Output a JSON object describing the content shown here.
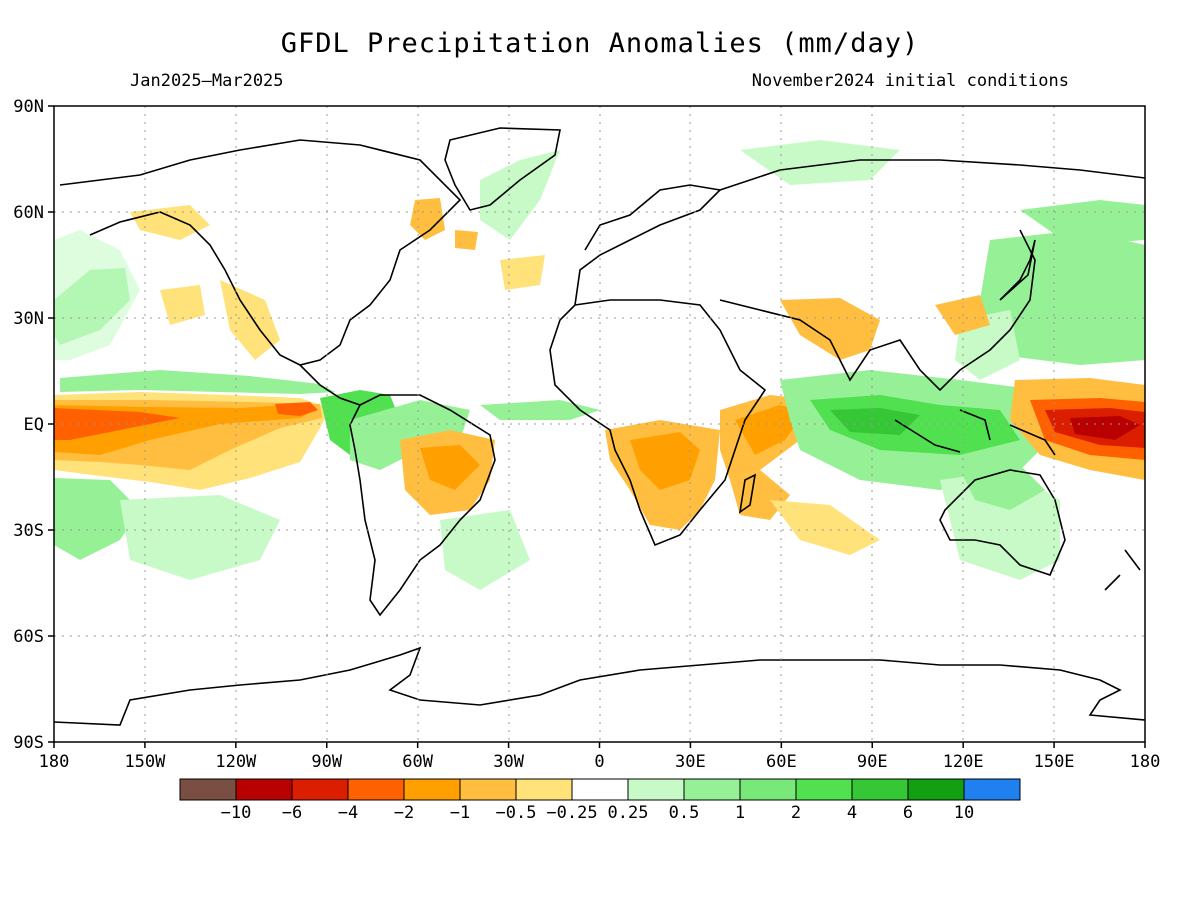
{
  "title": "GFDL Precipitation Anomalies (mm/day)",
  "period": "Jan2025—Mar2025",
  "initial_conditions": "November2024 initial conditions",
  "lat_ticks": [
    "90N",
    "60N",
    "30N",
    "EQ",
    "30S",
    "60S",
    "90S"
  ],
  "lon_ticks": [
    "180",
    "150W",
    "120W",
    "90W",
    "60W",
    "30W",
    "0",
    "30E",
    "60E",
    "90E",
    "120E",
    "150E",
    "180"
  ],
  "colorbar": {
    "colors": [
      "#7a4e42",
      "#b80000",
      "#dc1e00",
      "#ff6000",
      "#ffa000",
      "#ffbe40",
      "#ffe27a",
      "#ffffff",
      "#c8fac8",
      "#96f096",
      "#78e878",
      "#50e050",
      "#35c735",
      "#12a012",
      "#2080f0"
    ],
    "labels": [
      "−10",
      "−6",
      "−4",
      "−2",
      "−1",
      "−0.5",
      "−0.25",
      "0.25",
      "0.5",
      "1",
      "2",
      "4",
      "6",
      "10"
    ]
  },
  "colors": {
    "wet_light": "#c8fac8",
    "wet_mid": "#96f096",
    "wet_strong": "#50e050",
    "wet_heavy": "#35c735",
    "dry_light": "#ffe27a",
    "dry_mid": "#ffbe40",
    "dry_strong": "#ffa000",
    "dry_heavy": "#ff6000",
    "dry_extreme": "#dc1e00",
    "dry_max": "#b80000"
  }
}
